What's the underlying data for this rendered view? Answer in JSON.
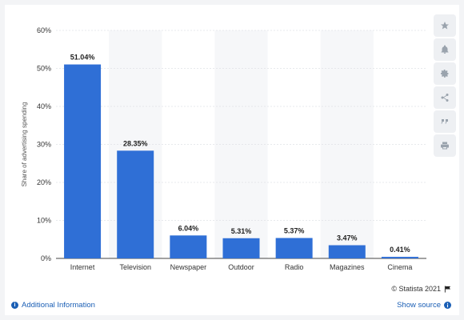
{
  "chart_data": {
    "type": "bar",
    "categories": [
      "Internet",
      "Television",
      "Newspaper",
      "Outdoor",
      "Radio",
      "Magazines",
      "Cinema"
    ],
    "values": [
      51.04,
      28.35,
      6.04,
      5.31,
      5.37,
      3.47,
      0.41
    ],
    "data_labels": [
      "51.04%",
      "28.35%",
      "6.04%",
      "5.31%",
      "5.37%",
      "3.47%",
      "0.41%"
    ],
    "ylabel": "Share of advertising spending",
    "yticks": [
      "0%",
      "10%",
      "20%",
      "30%",
      "40%",
      "50%",
      "60%"
    ],
    "ylim": [
      0,
      60
    ],
    "grid": true,
    "bar_color": "#2f6fd6"
  },
  "footer": {
    "credit": "© Statista 2021",
    "additional_info": "Additional Information",
    "show_source": "Show source"
  },
  "toolbar": {
    "icons": [
      "star-icon",
      "bell-icon",
      "gear-icon",
      "share-icon",
      "quote-icon",
      "print-icon"
    ]
  }
}
